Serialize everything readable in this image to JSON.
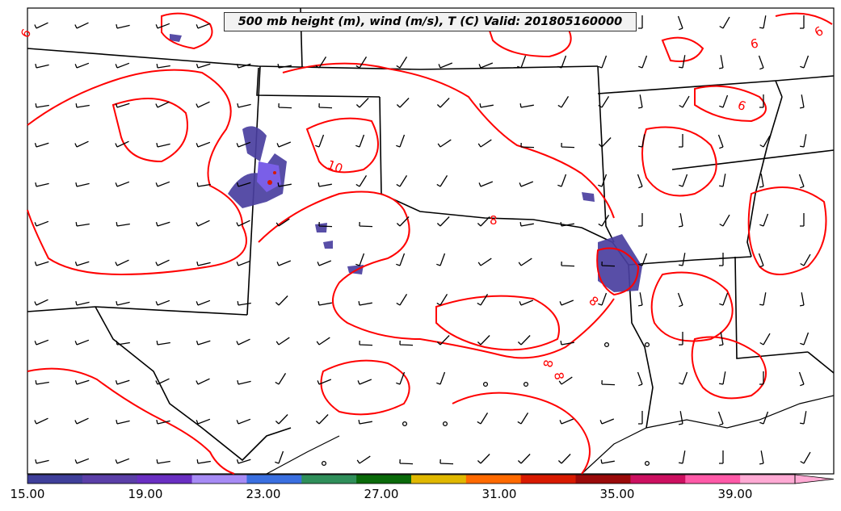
{
  "title": "500 mb height (m), wind (m/s), T (C) Valid: 201805160000",
  "contour_labels": [
    "10",
    "8",
    "8",
    "8",
    "8",
    "6",
    "6",
    "6",
    "6"
  ],
  "colorbar": {
    "ticks": [
      "15.00",
      "19.00",
      "23.00",
      "27.00",
      "31.00",
      "35.00",
      "39.00"
    ],
    "colors": [
      "#3f3f9a",
      "#5b3fa8",
      "#6a2fc2",
      "#a78bf5",
      "#3a6fe0",
      "#2f8f5a",
      "#0a6a0a",
      "#e0b800",
      "#ff6a00",
      "#d81a00",
      "#9a0a0a",
      "#cc1060",
      "#ff5aa8",
      "#ffaad4"
    ]
  },
  "styles": {
    "contour_color": "#ff0000",
    "boundary_color": "#000000",
    "shading_color": "#4a3fa0"
  }
}
